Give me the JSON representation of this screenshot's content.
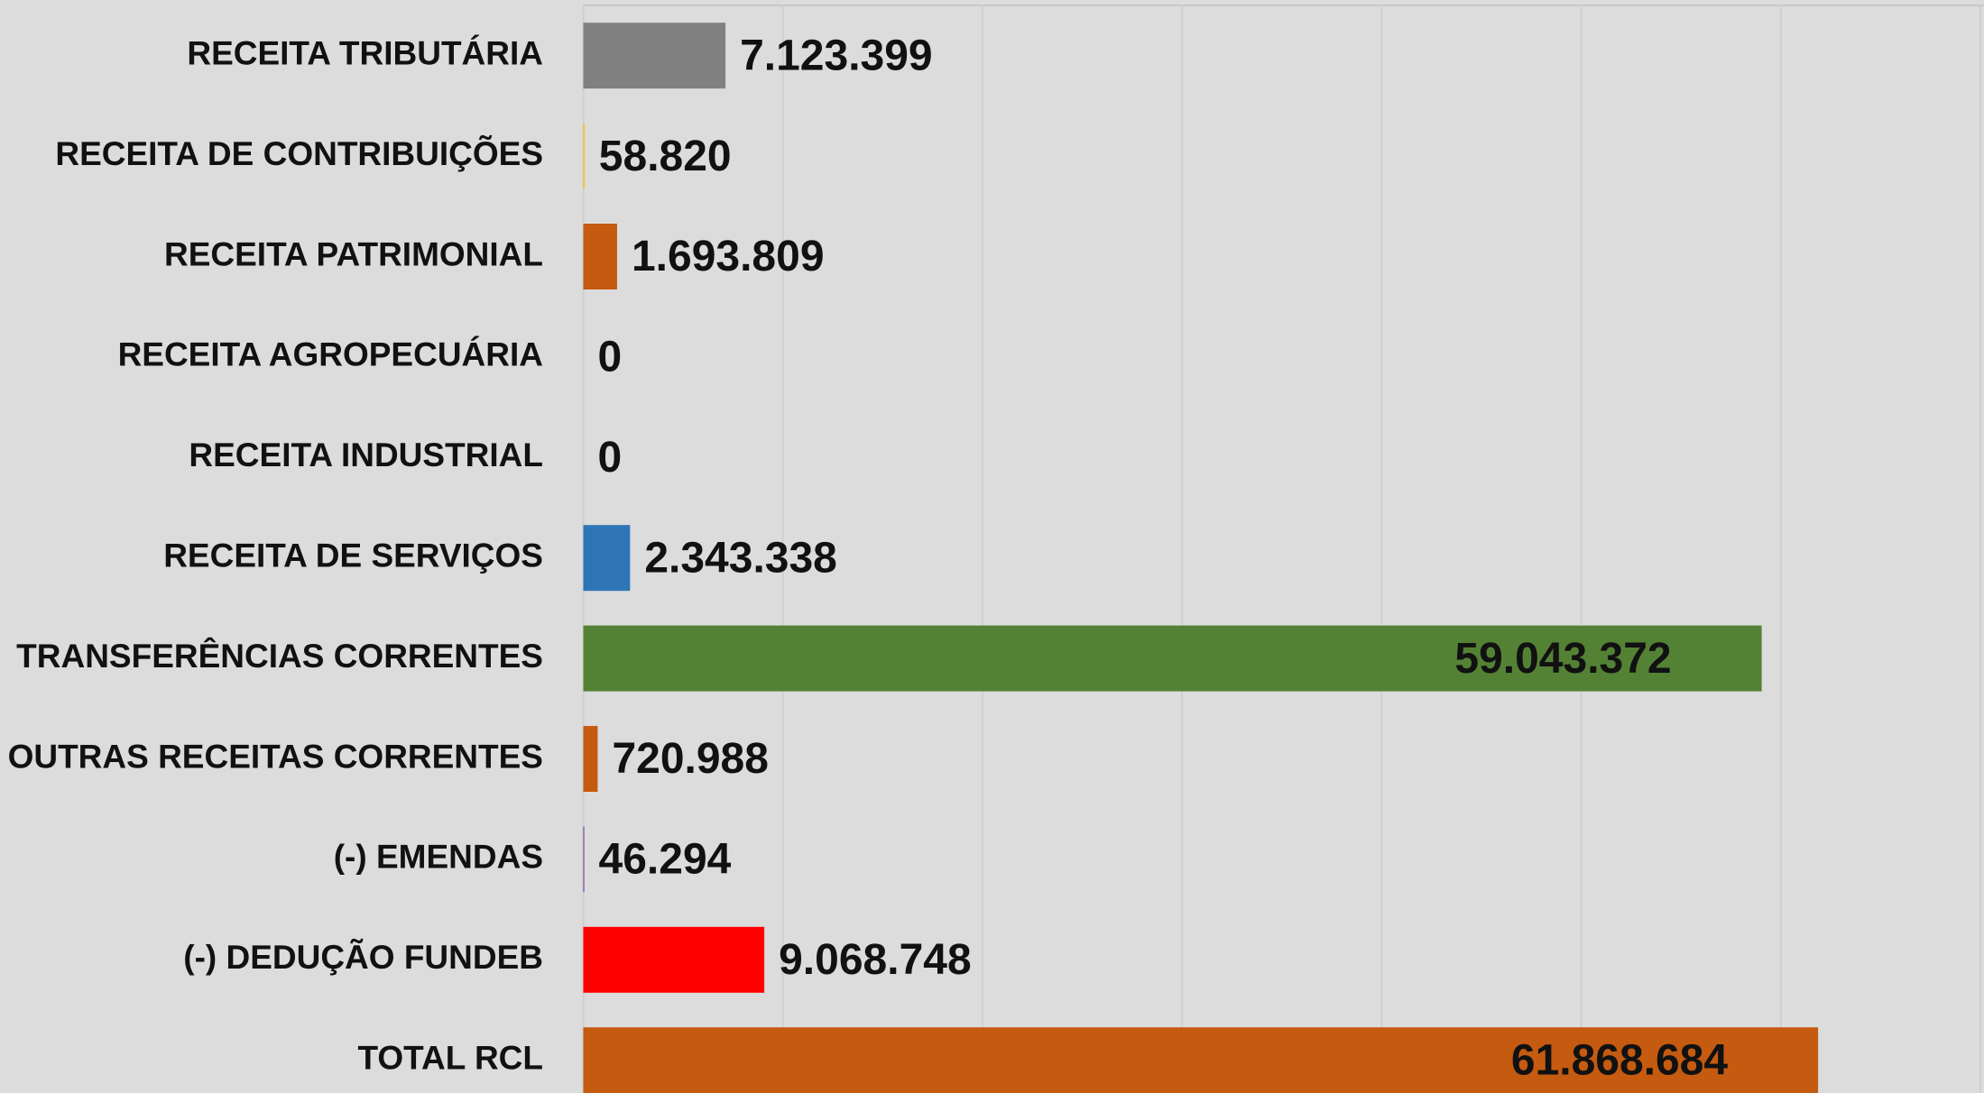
{
  "chart_data": {
    "type": "hbar",
    "categories": [
      "RECEITA TRIBUTÁRIA",
      "RECEITA DE CONTRIBUIÇÕES",
      "RECEITA PATRIMONIAL",
      "RECEITA AGROPECUÁRIA",
      "RECEITA INDUSTRIAL",
      "RECEITA DE SERVIÇOS",
      "TRANSFERÊNCIAS CORRENTES",
      "OUTRAS RECEITAS CORRENTES",
      "(-) EMENDAS",
      "(-) DEDUÇÃO FUNDEB",
      "TOTAL RCL"
    ],
    "values": [
      7123399,
      58820,
      1693809,
      0,
      0,
      2343338,
      59043372,
      720988,
      46294,
      9068748,
      61868684
    ],
    "value_labels": [
      "7.123.399",
      "58.820",
      "1.693.809",
      "0",
      "0",
      "2.343.338",
      "59.043.372",
      "720.988",
      "46.294",
      "9.068.748",
      "61.868.684"
    ],
    "colors": [
      "#808080",
      "#ffc000",
      "#c55a11",
      "#a5a5a5",
      "#4472c4",
      "#2e75b6",
      "#548235",
      "#c55a11",
      "#7030a0",
      "#ff0000",
      "#c55a11"
    ],
    "xlim": [
      0,
      70000000
    ],
    "xticks": [
      0,
      10000000,
      20000000,
      30000000,
      40000000,
      50000000,
      60000000,
      70000000
    ],
    "grid": true
  }
}
